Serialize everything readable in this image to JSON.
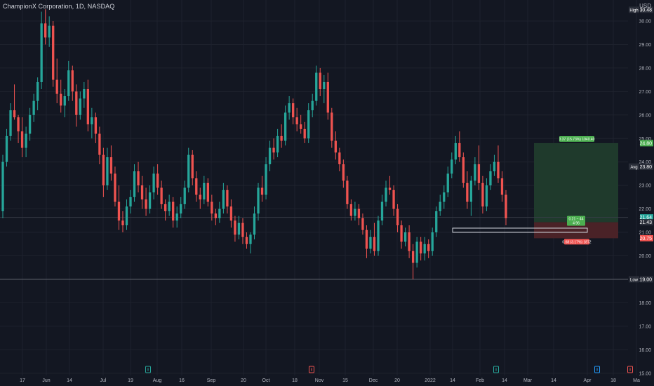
{
  "header": {
    "title": "ChampionX Corporation, 1D, NASDAQ",
    "currency": "USD"
  },
  "colors": {
    "background": "#131722",
    "grid": "#1e222d",
    "up": "#26a69a",
    "down": "#ef5350",
    "text": "#b2b5be",
    "profit_zone": "#1f3a2c",
    "loss_zone": "#4a2227"
  },
  "chart_data": {
    "type": "candlestick",
    "y_axis": {
      "range": [
        15.0,
        31.0
      ],
      "ticks": [
        "30.00",
        "29.00",
        "28.00",
        "27.00",
        "26.00",
        "25.00",
        "24.00",
        "23.00",
        "22.00",
        "21.00",
        "20.00",
        "19.00",
        "18.00",
        "17.00",
        "16.00",
        "15.00"
      ]
    },
    "x_axis": {
      "ticks": [
        "17",
        "Jun",
        "14",
        "Jul",
        "19",
        "Aug",
        "16",
        "Sep",
        "20",
        "Oct",
        "18",
        "Nov",
        "15",
        "Dec",
        "20",
        "2022",
        "14",
        "Feb",
        "14",
        "Mar",
        "14",
        "Apr",
        "18",
        "Ma"
      ]
    },
    "price_labels": [
      {
        "tag": "High",
        "value": "30.48"
      },
      {
        "tag": "",
        "value": "24.80"
      },
      {
        "tag": "Avg",
        "value": "23.80"
      },
      {
        "tag": "",
        "value": "21.64"
      },
      {
        "tag": "",
        "value": "21.43"
      },
      {
        "tag": "",
        "value": "20.75"
      },
      {
        "tag": "Low",
        "value": "19.00"
      }
    ],
    "position": {
      "target": "3.37 (15.73%) 1940.40",
      "entry": "0.21 − 44",
      "entry_sub": "4 96",
      "stop": "0.68 (3.17%) 1872"
    },
    "candles": [
      [
        21.9,
        24.3,
        21.6,
        24.0
      ],
      [
        24.0,
        25.4,
        23.8,
        25.1
      ],
      [
        25.1,
        26.5,
        24.9,
        26.2
      ],
      [
        26.2,
        27.3,
        25.8,
        25.9
      ],
      [
        25.9,
        26.0,
        24.8,
        25.3
      ],
      [
        25.3,
        25.9,
        24.2,
        24.6
      ],
      [
        24.6,
        25.5,
        24.2,
        25.2
      ],
      [
        25.2,
        26.3,
        24.9,
        26.0
      ],
      [
        26.0,
        26.9,
        25.7,
        26.6
      ],
      [
        26.6,
        27.6,
        26.2,
        27.4
      ],
      [
        27.4,
        30.4,
        27.1,
        29.9
      ],
      [
        29.9,
        30.5,
        29.0,
        29.3
      ],
      [
        29.3,
        30.2,
        28.9,
        29.8
      ],
      [
        29.8,
        30.0,
        27.2,
        27.5
      ],
      [
        27.5,
        28.4,
        26.5,
        26.9
      ],
      [
        26.9,
        27.5,
        26.1,
        26.4
      ],
      [
        26.4,
        27.1,
        25.9,
        26.8
      ],
      [
        26.8,
        28.3,
        26.6,
        27.9
      ],
      [
        27.9,
        28.1,
        26.6,
        27.0
      ],
      [
        27.0,
        27.3,
        25.5,
        26.0
      ],
      [
        26.0,
        27.0,
        25.8,
        26.7
      ],
      [
        26.7,
        27.4,
        26.3,
        27.1
      ],
      [
        27.1,
        27.5,
        25.3,
        25.6
      ],
      [
        25.6,
        26.3,
        25.0,
        25.9
      ],
      [
        25.9,
        26.1,
        24.8,
        25.2
      ],
      [
        25.2,
        25.5,
        23.9,
        24.3
      ],
      [
        24.3,
        24.6,
        22.5,
        23.0
      ],
      [
        23.0,
        24.6,
        22.8,
        24.2
      ],
      [
        24.2,
        24.7,
        23.2,
        23.5
      ],
      [
        23.5,
        23.8,
        22.1,
        22.3
      ],
      [
        22.3,
        23.0,
        21.1,
        21.5
      ],
      [
        21.5,
        21.9,
        21.0,
        21.3
      ],
      [
        21.3,
        22.4,
        21.1,
        22.1
      ],
      [
        22.1,
        22.8,
        21.8,
        22.5
      ],
      [
        22.5,
        23.9,
        22.3,
        23.6
      ],
      [
        23.6,
        24.0,
        22.7,
        23.0
      ],
      [
        23.0,
        23.4,
        22.0,
        22.4
      ],
      [
        22.4,
        22.9,
        21.7,
        22.0
      ],
      [
        22.0,
        23.0,
        21.8,
        22.7
      ],
      [
        22.7,
        23.8,
        22.4,
        23.5
      ],
      [
        23.5,
        23.9,
        22.6,
        22.9
      ],
      [
        22.9,
        23.2,
        22.0,
        22.2
      ],
      [
        22.2,
        22.4,
        21.5,
        21.9
      ],
      [
        21.9,
        22.6,
        21.7,
        22.3
      ],
      [
        22.3,
        22.5,
        21.2,
        21.5
      ],
      [
        21.5,
        22.1,
        21.2,
        21.8
      ],
      [
        21.8,
        22.5,
        21.6,
        22.2
      ],
      [
        22.2,
        23.2,
        22.0,
        22.9
      ],
      [
        22.9,
        24.6,
        22.7,
        24.3
      ],
      [
        24.3,
        24.5,
        23.0,
        23.3
      ],
      [
        23.3,
        23.6,
        22.3,
        22.6
      ],
      [
        22.6,
        22.9,
        22.0,
        22.4
      ],
      [
        22.4,
        23.4,
        22.2,
        23.1
      ],
      [
        23.1,
        23.3,
        22.1,
        22.3
      ],
      [
        22.3,
        22.6,
        21.5,
        21.8
      ],
      [
        21.8,
        22.0,
        21.3,
        21.6
      ],
      [
        21.6,
        22.3,
        21.4,
        22.0
      ],
      [
        22.0,
        23.1,
        21.8,
        22.8
      ],
      [
        22.8,
        23.0,
        21.8,
        22.1
      ],
      [
        22.1,
        22.4,
        21.2,
        21.5
      ],
      [
        21.5,
        21.7,
        20.6,
        20.9
      ],
      [
        20.9,
        21.7,
        20.7,
        21.4
      ],
      [
        21.4,
        21.6,
        20.5,
        20.8
      ],
      [
        20.8,
        21.0,
        20.3,
        20.5
      ],
      [
        20.5,
        21.0,
        20.1,
        20.9
      ],
      [
        20.9,
        22.1,
        20.7,
        21.8
      ],
      [
        21.8,
        23.1,
        21.5,
        22.9
      ],
      [
        22.9,
        23.4,
        22.3,
        22.6
      ],
      [
        22.6,
        24.2,
        22.4,
        23.9
      ],
      [
        23.9,
        24.9,
        23.6,
        24.6
      ],
      [
        24.6,
        25.0,
        24.1,
        24.4
      ],
      [
        24.4,
        25.4,
        24.2,
        25.1
      ],
      [
        25.1,
        25.6,
        24.6,
        24.9
      ],
      [
        24.9,
        26.4,
        24.7,
        26.1
      ],
      [
        26.1,
        26.8,
        25.8,
        26.5
      ],
      [
        26.5,
        26.7,
        25.6,
        25.9
      ],
      [
        25.9,
        26.3,
        25.3,
        25.6
      ],
      [
        25.6,
        26.0,
        25.2,
        25.4
      ],
      [
        25.4,
        25.7,
        24.8,
        25.0
      ],
      [
        25.0,
        26.5,
        24.8,
        26.2
      ],
      [
        26.2,
        26.9,
        25.9,
        26.6
      ],
      [
        26.6,
        28.1,
        26.4,
        27.8
      ],
      [
        27.8,
        28.0,
        26.8,
        27.1
      ],
      [
        27.1,
        27.7,
        26.5,
        27.4
      ],
      [
        27.4,
        27.8,
        25.8,
        26.1
      ],
      [
        26.1,
        26.3,
        24.6,
        24.9
      ],
      [
        24.9,
        25.3,
        24.1,
        24.4
      ],
      [
        24.4,
        24.6,
        23.6,
        23.9
      ],
      [
        23.9,
        24.1,
        22.9,
        23.2
      ],
      [
        23.2,
        23.4,
        22.0,
        22.2
      ],
      [
        22.2,
        22.4,
        21.5,
        21.7
      ],
      [
        21.7,
        22.3,
        21.5,
        22.0
      ],
      [
        22.0,
        22.2,
        21.3,
        21.6
      ],
      [
        21.6,
        21.8,
        20.9,
        21.1
      ],
      [
        21.1,
        21.3,
        19.9,
        20.3
      ],
      [
        20.3,
        21.1,
        20.1,
        20.8
      ],
      [
        20.8,
        21.4,
        20.0,
        20.2
      ],
      [
        20.2,
        21.7,
        20.0,
        21.5
      ],
      [
        21.5,
        22.6,
        21.3,
        22.3
      ],
      [
        22.3,
        23.2,
        22.1,
        22.9
      ],
      [
        22.9,
        23.4,
        22.6,
        22.8
      ],
      [
        22.8,
        23.0,
        21.7,
        22.0
      ],
      [
        22.0,
        22.2,
        21.0,
        21.3
      ],
      [
        21.3,
        21.5,
        20.3,
        20.6
      ],
      [
        20.6,
        21.2,
        20.4,
        21.0
      ],
      [
        21.0,
        21.3,
        19.9,
        20.2
      ],
      [
        20.2,
        20.5,
        19.0,
        19.7
      ],
      [
        19.7,
        20.8,
        19.5,
        20.6
      ],
      [
        20.6,
        20.8,
        19.8,
        20.1
      ],
      [
        20.1,
        20.8,
        19.8,
        20.5
      ],
      [
        20.5,
        20.7,
        19.9,
        20.2
      ],
      [
        20.2,
        21.2,
        20.0,
        21.0
      ],
      [
        21.0,
        22.1,
        20.8,
        21.9
      ],
      [
        21.9,
        22.6,
        21.7,
        22.3
      ],
      [
        22.3,
        23.0,
        22.0,
        22.7
      ],
      [
        22.7,
        23.8,
        22.5,
        23.5
      ],
      [
        23.5,
        24.4,
        23.3,
        24.1
      ],
      [
        24.1,
        25.1,
        23.9,
        24.8
      ],
      [
        24.8,
        25.3,
        24.0,
        24.2
      ],
      [
        24.2,
        24.4,
        22.9,
        23.1
      ],
      [
        23.1,
        23.6,
        22.0,
        22.3
      ],
      [
        22.3,
        23.4,
        21.7,
        23.2
      ],
      [
        23.2,
        24.2,
        23.0,
        23.9
      ],
      [
        23.9,
        24.7,
        22.8,
        23.1
      ],
      [
        23.1,
        23.4,
        21.8,
        22.1
      ],
      [
        22.1,
        23.3,
        21.9,
        23.0
      ],
      [
        23.0,
        23.9,
        22.8,
        23.6
      ],
      [
        23.6,
        24.3,
        23.4,
        24.0
      ],
      [
        24.0,
        24.7,
        23.1,
        23.3
      ],
      [
        23.3,
        23.6,
        22.3,
        22.6
      ],
      [
        22.6,
        22.8,
        21.3,
        21.6
      ]
    ]
  }
}
